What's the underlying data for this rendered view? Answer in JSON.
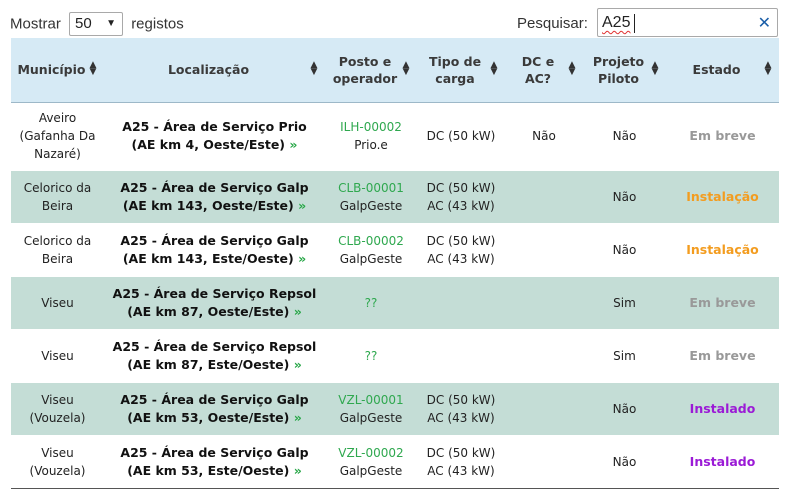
{
  "controls": {
    "show_label": "Mostrar",
    "length_value": "50",
    "records_label": "registos",
    "search_label": "Pesquisar:",
    "search_value": "A25",
    "clear_symbol": "✕"
  },
  "colors": {
    "header_bg": "#d6eaf5",
    "row_alt_bg": "#c4ddd6",
    "code_green": "#2fa84f",
    "status_soon": "#999999",
    "status_installing": "#f39c1f",
    "status_installed": "#9b1bd6"
  },
  "table": {
    "headers": {
      "municipio": "Município",
      "localizacao": "Localização",
      "posto_1": "Posto e",
      "posto_2": "operador",
      "tipo_1": "Tipo de",
      "tipo_2": "carga",
      "dcac_1": "DC e",
      "dcac_2": "AC?",
      "piloto_1": "Projeto",
      "piloto_2": "Piloto",
      "estado": "Estado"
    },
    "rows": [
      {
        "mun_1": "Aveiro",
        "mun_2": "(Gafanha Da",
        "mun_3": "Nazaré)",
        "loc_1": "A25 - Área de Serviço Prio",
        "loc_2": "(AE km 4, Oeste/Este)",
        "more": "»",
        "code": "ILH-00002",
        "operator": "Prio.e",
        "tipo_1": "DC (50 kW)",
        "tipo_2": "",
        "dcac": "Não",
        "piloto": "Não",
        "estado": "Em breve",
        "estado_kind": "soon"
      },
      {
        "mun_1": "Celorico da",
        "mun_2": "Beira",
        "mun_3": "",
        "loc_1": "A25 - Área de Serviço Galp",
        "loc_2": "(AE km 143, Oeste/Este)",
        "more": "»",
        "code": "CLB-00001",
        "operator": "GalpGeste",
        "tipo_1": "DC (50 kW)",
        "tipo_2": "AC (43 kW)",
        "dcac": "",
        "piloto": "Não",
        "estado": "Instalação",
        "estado_kind": "inst"
      },
      {
        "mun_1": "Celorico da",
        "mun_2": "Beira",
        "mun_3": "",
        "loc_1": "A25 - Área de Serviço Galp",
        "loc_2": "(AE km 143, Este/Oeste)",
        "more": "»",
        "code": "CLB-00002",
        "operator": "GalpGeste",
        "tipo_1": "DC (50 kW)",
        "tipo_2": "AC (43 kW)",
        "dcac": "",
        "piloto": "Não",
        "estado": "Instalação",
        "estado_kind": "inst"
      },
      {
        "mun_1": "Viseu",
        "mun_2": "",
        "mun_3": "",
        "loc_1": "A25 - Área de Serviço Repsol",
        "loc_2": "(AE km 87, Oeste/Este)",
        "more": "»",
        "code": "??",
        "operator": "",
        "tipo_1": "",
        "tipo_2": "",
        "dcac": "",
        "piloto": "Sim",
        "estado": "Em breve",
        "estado_kind": "soon"
      },
      {
        "mun_1": "Viseu",
        "mun_2": "",
        "mun_3": "",
        "loc_1": "A25 - Área de Serviço Repsol",
        "loc_2": "(AE km 87, Este/Oeste)",
        "more": "»",
        "code": "??",
        "operator": "",
        "tipo_1": "",
        "tipo_2": "",
        "dcac": "",
        "piloto": "Sim",
        "estado": "Em breve",
        "estado_kind": "soon"
      },
      {
        "mun_1": "Viseu",
        "mun_2": "(Vouzela)",
        "mun_3": "",
        "loc_1": "A25 - Área de Serviço Galp",
        "loc_2": "(AE km 53, Oeste/Este)",
        "more": "»",
        "code": "VZL-00001",
        "operator": "GalpGeste",
        "tipo_1": "DC (50 kW)",
        "tipo_2": "AC (43 kW)",
        "dcac": "",
        "piloto": "Não",
        "estado": "Instalado",
        "estado_kind": "done"
      },
      {
        "mun_1": "Viseu",
        "mun_2": "(Vouzela)",
        "mun_3": "",
        "loc_1": "A25 - Área de Serviço Galp",
        "loc_2": "(AE km 53, Este/Oeste)",
        "more": "»",
        "code": "VZL-00002",
        "operator": "GalpGeste",
        "tipo_1": "DC (50 kW)",
        "tipo_2": "AC (43 kW)",
        "dcac": "",
        "piloto": "Não",
        "estado": "Instalado",
        "estado_kind": "done"
      }
    ]
  }
}
